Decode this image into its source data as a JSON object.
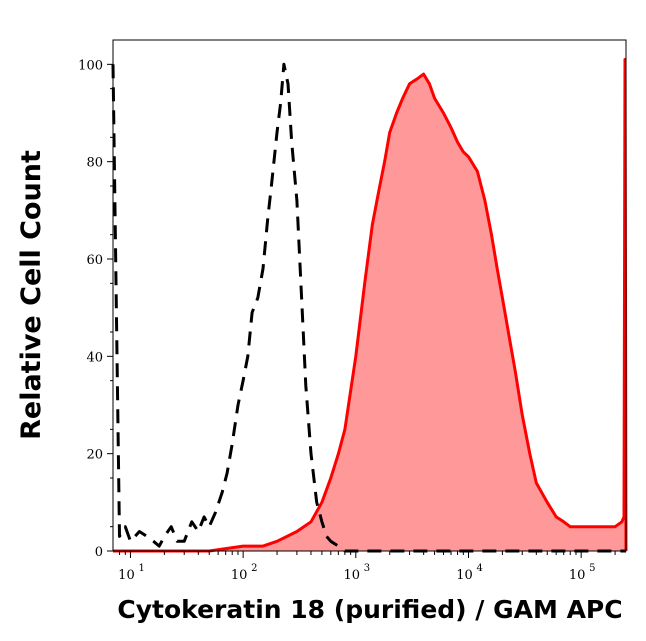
{
  "chart_data": {
    "type": "area",
    "xlabel": "Cytokeratin 18 (purified) / GAM APC",
    "ylabel": "Relative Cell Count",
    "x_scale": "log",
    "xlim": [
      7,
      250000
    ],
    "ylim": [
      0,
      105
    ],
    "x_ticks": [
      {
        "base": "10",
        "exp": "1",
        "value": 10
      },
      {
        "base": "10",
        "exp": "2",
        "value": 100
      },
      {
        "base": "10",
        "exp": "3",
        "value": 1000
      },
      {
        "base": "10",
        "exp": "4",
        "value": 10000
      },
      {
        "base": "10",
        "exp": "5",
        "value": 100000
      }
    ],
    "y_ticks": [
      "0",
      "20",
      "40",
      "60",
      "80",
      "100"
    ],
    "grid": false,
    "legend": "none",
    "series": [
      {
        "style": "dashed",
        "color": "#000000",
        "fill": "none",
        "x": [
          7,
          8,
          9,
          10,
          12,
          14,
          16,
          18,
          20,
          23,
          26,
          30,
          35,
          40,
          45,
          50,
          57,
          65,
          72,
          80,
          90,
          100,
          110,
          120,
          135,
          150,
          165,
          180,
          200,
          215,
          230,
          250,
          270,
          300,
          330,
          360,
          400,
          450,
          500,
          550,
          600,
          700,
          800,
          1000,
          1500,
          2000,
          3000,
          10000,
          250000
        ],
        "y": [
          100,
          3,
          5,
          2,
          4,
          3,
          2,
          1,
          3,
          5,
          2,
          2,
          6,
          4,
          7,
          5,
          8,
          12,
          16,
          22,
          30,
          35,
          40,
          49,
          52,
          58,
          68,
          76,
          86,
          92,
          100,
          96,
          84,
          72,
          52,
          34,
          20,
          10,
          6,
          3,
          2,
          1,
          0,
          0,
          0,
          0,
          0,
          0,
          0
        ]
      },
      {
        "style": "solid",
        "color": "#ff0000",
        "fill": "#ff9999",
        "x": [
          7,
          10,
          20,
          50,
          100,
          150,
          200,
          300,
          400,
          500,
          600,
          700,
          800,
          900,
          1000,
          1200,
          1400,
          1600,
          1800,
          2000,
          2300,
          2600,
          3000,
          3500,
          4000,
          4500,
          5000,
          6000,
          7000,
          8000,
          9000,
          10000,
          12000,
          14000,
          16000,
          18000,
          20000,
          23000,
          26000,
          30000,
          35000,
          40000,
          50000,
          60000,
          70000,
          80000,
          100000,
          130000,
          160000,
          200000,
          230000,
          240000,
          245000,
          250000
        ],
        "y": [
          0,
          0,
          0,
          0,
          1,
          1,
          2,
          4,
          6,
          10,
          15,
          20,
          25,
          33,
          40,
          55,
          67,
          74,
          80,
          86,
          90,
          93,
          96,
          97,
          98,
          96,
          93,
          90,
          87,
          84,
          82,
          81,
          78,
          72,
          65,
          58,
          52,
          44,
          37,
          28,
          20,
          14,
          10,
          7,
          6,
          5,
          5,
          5,
          5,
          5,
          6,
          7,
          101,
          0
        ]
      }
    ]
  }
}
